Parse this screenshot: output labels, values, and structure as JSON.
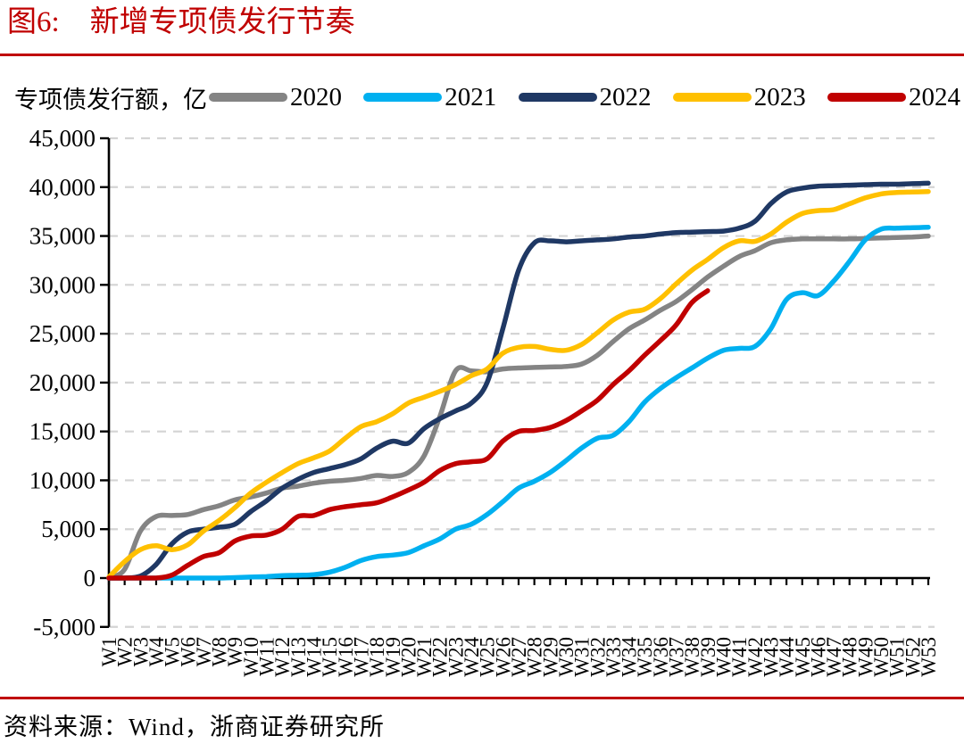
{
  "figure": {
    "number": "图6:",
    "title": "新增专项债发行节奏",
    "source": "资料来源：Wind，浙商证券研究所",
    "accent_color": "#C00000"
  },
  "legend_note": "专项债发行额，亿",
  "chart_data": {
    "type": "line",
    "title": "新增专项债发行节奏",
    "ylabel": "专项债发行额，亿",
    "ylim": [
      -5000,
      45000
    ],
    "ytick_step": 5000,
    "grid": "horizontal-dashed",
    "grid_color": "#D4D4D4",
    "axis_color": "#000000",
    "legend_position": "top",
    "x": [
      "W1",
      "W2",
      "W3",
      "W4",
      "W5",
      "W6",
      "W7",
      "W8",
      "W9",
      "W10",
      "W11",
      "W12",
      "W13",
      "W14",
      "W15",
      "W16",
      "W17",
      "W18",
      "W19",
      "W20",
      "W21",
      "W22",
      "W23",
      "W24",
      "W25",
      "W26",
      "W27",
      "W28",
      "W29",
      "W30",
      "W31",
      "W32",
      "W33",
      "W34",
      "W35",
      "W36",
      "W37",
      "W38",
      "W39",
      "W40",
      "W41",
      "W42",
      "W43",
      "W44",
      "W45",
      "W46",
      "W47",
      "W48",
      "W49",
      "W50",
      "W51",
      "W52",
      "W53"
    ],
    "series": [
      {
        "name": "2020",
        "color": "#848484",
        "values": [
          0,
          900,
          4800,
          6300,
          6400,
          6500,
          7000,
          7400,
          8000,
          8300,
          8700,
          9200,
          9400,
          9700,
          9900,
          10000,
          10200,
          10500,
          10400,
          10800,
          12500,
          16500,
          21200,
          21200,
          21100,
          21400,
          21500,
          21550,
          21600,
          21650,
          21900,
          22800,
          24200,
          25500,
          26400,
          27400,
          28300,
          29500,
          30800,
          31900,
          32900,
          33500,
          34300,
          34600,
          34700,
          34700,
          34700,
          34700,
          34750,
          34800,
          34850,
          34900,
          35000
        ]
      },
      {
        "name": "2021",
        "color": "#00B0F0",
        "values": [
          0,
          0,
          0,
          0,
          0,
          0,
          0,
          0,
          50,
          100,
          150,
          250,
          280,
          350,
          600,
          1100,
          1800,
          2200,
          2350,
          2600,
          3300,
          4000,
          5000,
          5500,
          6500,
          7800,
          9200,
          9900,
          10800,
          12000,
          13300,
          14300,
          14600,
          16000,
          18000,
          19400,
          20500,
          21500,
          22500,
          23300,
          23500,
          23700,
          25500,
          28500,
          29200,
          28900,
          30400,
          32400,
          34600,
          35700,
          35800,
          35850,
          35900
        ]
      },
      {
        "name": "2022",
        "color": "#1F3864",
        "values": [
          0,
          0,
          200,
          1400,
          3500,
          4700,
          5000,
          5200,
          5500,
          6800,
          7900,
          9200,
          10100,
          10800,
          11200,
          11600,
          12200,
          13300,
          14000,
          13800,
          15300,
          16300,
          17100,
          17900,
          20000,
          25500,
          31500,
          34300,
          34500,
          34400,
          34500,
          34600,
          34700,
          34900,
          35000,
          35200,
          35350,
          35400,
          35450,
          35500,
          35800,
          36500,
          38300,
          39500,
          39900,
          40100,
          40150,
          40200,
          40250,
          40300,
          40300,
          40350,
          40400
        ]
      },
      {
        "name": "2023",
        "color": "#FFC000",
        "values": [
          100,
          1700,
          2900,
          3300,
          2900,
          3400,
          4800,
          5900,
          7200,
          8700,
          9800,
          10800,
          11700,
          12300,
          13000,
          14300,
          15500,
          16000,
          16800,
          17900,
          18500,
          19100,
          19800,
          20700,
          21400,
          23000,
          23600,
          23700,
          23400,
          23300,
          23900,
          25100,
          26400,
          27200,
          27500,
          28600,
          30100,
          31500,
          32600,
          33800,
          34500,
          34450,
          35200,
          36400,
          37300,
          37600,
          37700,
          38300,
          38900,
          39300,
          39450,
          39500,
          39550
        ]
      },
      {
        "name": "2024",
        "color": "#C00000",
        "values": [
          0,
          0,
          0,
          0,
          300,
          1300,
          2200,
          2600,
          3800,
          4300,
          4400,
          5000,
          6300,
          6400,
          7000,
          7300,
          7500,
          7700,
          8300,
          9000,
          9800,
          11000,
          11700,
          11900,
          12200,
          14000,
          15000,
          15100,
          15400,
          16100,
          17100,
          18200,
          19800,
          21200,
          22800,
          24300,
          25900,
          28200,
          29400
        ]
      }
    ]
  }
}
